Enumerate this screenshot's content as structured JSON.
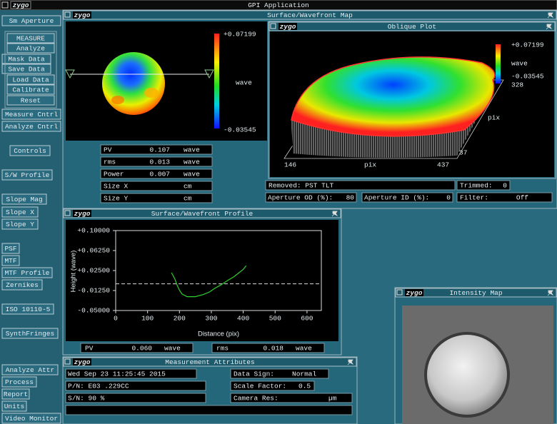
{
  "app_title": "GPI Application",
  "logo": "zygo",
  "sidebar": [
    "Sm Aperture",
    "MEASURE",
    "Analyze",
    "Mask Data",
    "Save Data",
    "Load Data",
    "Calibrate",
    "Reset",
    "Measure Cntrl",
    "Analyze Cntrl",
    "Controls",
    "S/W Profile",
    "Slope Mag",
    "Slope X",
    "Slope Y",
    "PSF",
    "MTF",
    "MTF Profile",
    "Zernikes",
    "ISO 10110-5",
    "SynthFringes",
    "Analyze Attr",
    "Process",
    "Report",
    "Units",
    "Video Monitor"
  ],
  "surface_map": {
    "title": "Surface/Wavefront Map",
    "colorbar": {
      "max": "+0.07199",
      "unit": "wave",
      "min": "-0.03545"
    },
    "stats": [
      {
        "label": "PV",
        "value": "0.107",
        "unit": "wave"
      },
      {
        "label": "rms",
        "value": "0.013",
        "unit": "wave"
      },
      {
        "label": "Power",
        "value": "0.007",
        "unit": "wave"
      },
      {
        "label": "Size X",
        "unit": "cm"
      },
      {
        "label": "Size Y",
        "unit": "cm"
      }
    ],
    "removed": "Removed: PST TLT",
    "trimmed": {
      "label": "Trimmed:",
      "value": "0"
    },
    "aperture_od": {
      "label": "Aperture OD (%):",
      "value": "80"
    },
    "aperture_id": {
      "label": "Aperture ID (%):",
      "value": "0"
    },
    "filter": {
      "label": "Filter:",
      "value": "Off"
    }
  },
  "oblique": {
    "title": "Oblique Plot",
    "colorbar": {
      "max": "+0.07199",
      "unit": "wave",
      "min": "-0.03545"
    },
    "y_max": "328",
    "y_label": "pix",
    "y_min": "37",
    "x_min": "146",
    "x_label": "pix",
    "x_max": "437"
  },
  "profile": {
    "title": "Surface/Wavefront Profile",
    "ylabel": "Height (wave)",
    "xlabel": "Distance (pix)",
    "xlim": [
      0,
      645
    ],
    "ylim": [
      -0.05,
      0.1
    ],
    "xticks": [
      0,
      100,
      200,
      300,
      400,
      500,
      600
    ],
    "yticks": [
      {
        "value": 0.1,
        "label": "+0.10000"
      },
      {
        "value": 0.0625,
        "label": "+0.06250"
      },
      {
        "value": 0.025,
        "label": "+0.02500"
      },
      {
        "value": -0.0125,
        "label": "-0.01250"
      },
      {
        "value": -0.05,
        "label": "-0.05000"
      }
    ],
    "reference_line": 0,
    "x": [
      175,
      185,
      193,
      200,
      208,
      224,
      250,
      275,
      295,
      309,
      330,
      353,
      370,
      387,
      400,
      409
    ],
    "values": [
      0.021,
      0.01,
      -0.003,
      -0.012,
      -0.019,
      -0.024,
      -0.024,
      -0.02,
      -0.015,
      -0.009,
      -0.002,
      0.007,
      0.013,
      0.021,
      0.027,
      0.034
    ],
    "stats": [
      {
        "label": "PV",
        "value": "0.060",
        "unit": "wave"
      },
      {
        "label": "rms",
        "value": "0.018",
        "unit": "wave"
      }
    ]
  },
  "intensity": {
    "title": "Intensity Map"
  },
  "attributes": {
    "title": "Measurement Attributes",
    "date": "Wed Sep 23 11:25:45 2015",
    "pn": "P/N: E03 .229CC",
    "sn": "S/N: 90 %",
    "data_sign": {
      "label": "Data Sign:",
      "value": "Normal"
    },
    "scale_factor": {
      "label": "Scale Factor:",
      "value": "0.5"
    },
    "camera_res": {
      "label": "Camera Res:",
      "unit": "µm"
    }
  }
}
